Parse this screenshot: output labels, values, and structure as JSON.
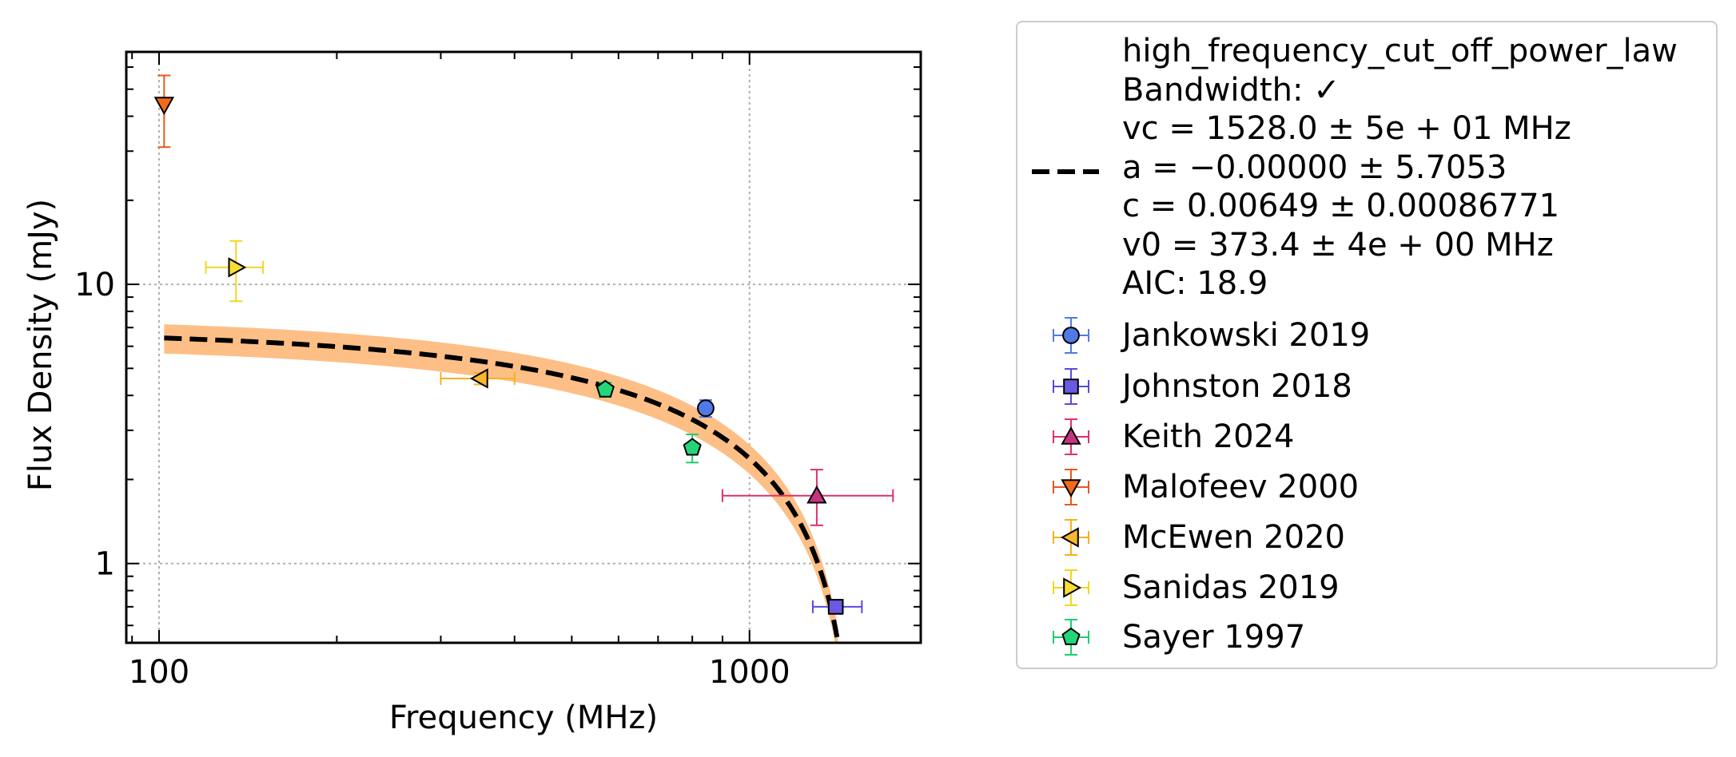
{
  "chart_data": {
    "type": "scatter",
    "xlabel": "Frequency (MHz)",
    "ylabel": "Flux Density (mJy)",
    "xscale": "log",
    "yscale": "log",
    "xlim": [
      88,
      1950
    ],
    "ylim": [
      0.52,
      68
    ],
    "x_ticks": [
      100,
      1000
    ],
    "x_tick_labels": [
      "100",
      "1000"
    ],
    "y_ticks": [
      1,
      10
    ],
    "y_tick_labels": [
      "1",
      "10"
    ],
    "grid": true,
    "legend_position": "outside-right",
    "fit": {
      "label_lines": [
        "high_frequency_cut_off_power_law",
        "Bandwidth: ✓",
        "vc = 1528.0 ± 5e + 01 MHz",
        "a = −0.00000 ± 5.7053",
        "c = 0.00649 ± 0.00086771",
        "v0 = 373.4 ± 4e + 00 MHz",
        "AIC: 18.9"
      ],
      "vc": 1528.0,
      "a": 0.0,
      "c": 0.00649,
      "v0": 373.4,
      "color": "#000000",
      "band_color": "#fdbf86",
      "band_fraction": 0.12
    },
    "series": [
      {
        "name": "Jankowski 2019",
        "marker": "circle",
        "color": "#4f7ae6",
        "edge": "#4f7ae6",
        "points": [
          {
            "x": 843,
            "y": 3.6,
            "yerr": [
              0.25,
              0.25
            ],
            "xerr": [
              0,
              0
            ]
          }
        ]
      },
      {
        "name": "Johnston 2018",
        "marker": "square",
        "color": "#6a5ae0",
        "edge": "#5b48e0",
        "points": [
          {
            "x": 1400,
            "y": 0.7,
            "xerr": [
              120,
              150
            ],
            "yerr": [
              0.04,
              0.04
            ]
          }
        ]
      },
      {
        "name": "Keith 2024",
        "marker": "triangle-up",
        "color": "#c7337e",
        "edge": "#e0306e",
        "points": [
          {
            "x": 1300,
            "y": 1.75,
            "xerr": [
              400,
              450
            ],
            "yerr": [
              0.38,
              0.42
            ]
          }
        ]
      },
      {
        "name": "Malofeev 2000",
        "marker": "triangle-down",
        "color": "#f26a1a",
        "edge": "#e8571e",
        "points": [
          {
            "x": 102,
            "y": 44,
            "yerr": [
              13,
              12
            ],
            "xerr": [
              0,
              0
            ]
          }
        ]
      },
      {
        "name": "McEwen 2020",
        "marker": "triangle-left",
        "color": "#f7b72e",
        "edge": "#f5b21e",
        "points": [
          {
            "x": 350,
            "y": 4.6,
            "xerr": [
              50,
              50
            ],
            "yerr": [
              0.22,
              0.22
            ]
          }
        ]
      },
      {
        "name": "Sanidas 2019",
        "marker": "triangle-right",
        "color": "#f7dd36",
        "edge": "#f5d520",
        "points": [
          {
            "x": 135,
            "y": 11.5,
            "xerr": [
              15,
              15
            ],
            "yerr": [
              2.8,
              2.8
            ]
          }
        ]
      },
      {
        "name": "Sayer 1997",
        "marker": "pentagon",
        "color": "#23d67a",
        "edge": "#1fcf6e",
        "points": [
          {
            "x": 570,
            "y": 4.2,
            "yerr": [
              0.25,
              0.25
            ],
            "xerr": [
              0,
              0
            ]
          },
          {
            "x": 800,
            "y": 2.6,
            "yerr": [
              0.3,
              0.3
            ],
            "xerr": [
              0,
              0
            ]
          }
        ]
      }
    ]
  }
}
